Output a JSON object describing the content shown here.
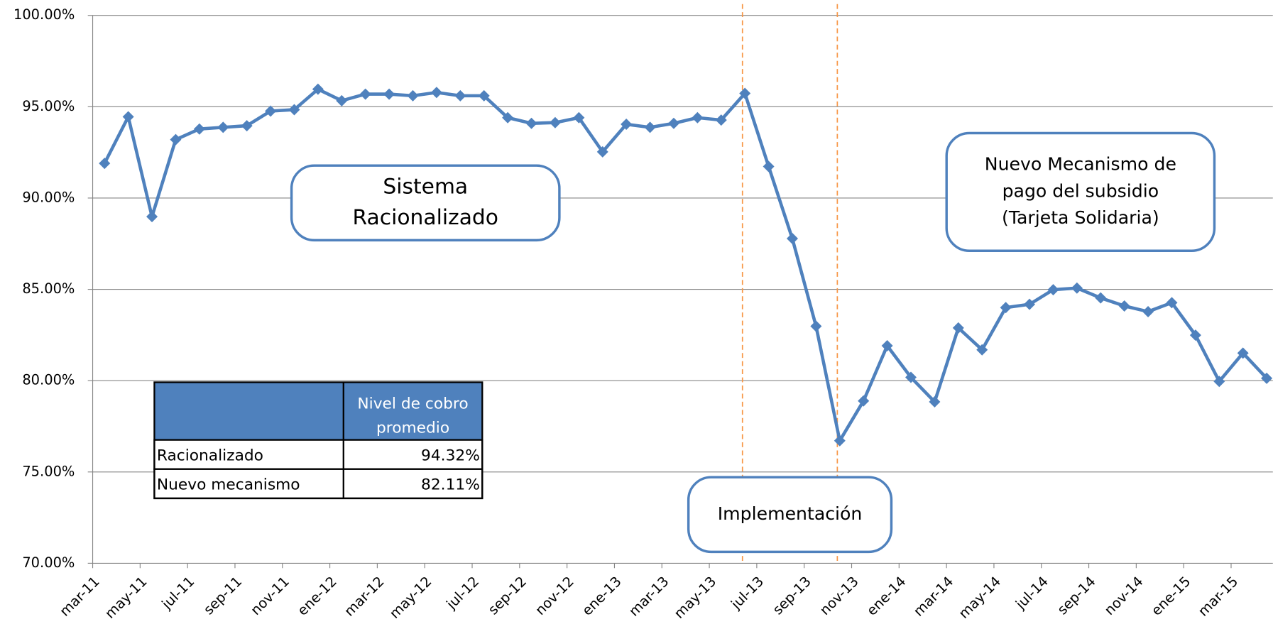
{
  "chart_data": {
    "type": "line",
    "categories": [
      "mar-11",
      null,
      "may-11",
      null,
      "jul-11",
      null,
      "sep-11",
      null,
      "nov-11",
      null,
      "ene-12",
      null,
      "mar-12",
      null,
      "may-12",
      null,
      "jul-12",
      null,
      "sep-12",
      null,
      "nov-12",
      null,
      "ene-13",
      null,
      "mar-13",
      null,
      "may-13",
      null,
      "jul-13",
      null,
      "sep-13",
      null,
      "nov-13",
      null,
      "ene-14",
      null,
      "mar-14",
      null,
      "may-14",
      null,
      "jul-14",
      null,
      "sep-14",
      null,
      "nov-14",
      null,
      "ene-15",
      null,
      "mar-15",
      null
    ],
    "series": [
      {
        "name": "Nivel de cobro",
        "color": "#4f81bd",
        "values": [
          91.9,
          94.45,
          88.98,
          93.2,
          93.78,
          93.87,
          93.96,
          94.76,
          94.84,
          95.96,
          95.33,
          95.69,
          95.69,
          95.6,
          95.78,
          95.6,
          95.6,
          94.4,
          94.09,
          94.13,
          94.4,
          92.53,
          94.04,
          93.87,
          94.09,
          94.4,
          94.27,
          95.73,
          91.73,
          87.78,
          82.98,
          76.71,
          78.89,
          81.91,
          80.18,
          78.84,
          82.89,
          81.69,
          84.0,
          84.18,
          84.98,
          85.07,
          84.53,
          84.09,
          83.78,
          84.27,
          82.49,
          79.96,
          81.51,
          80.13
        ]
      }
    ],
    "ylim": [
      70,
      100
    ],
    "yticks": [
      {
        "value": 70,
        "label": "70.00%"
      },
      {
        "value": 75,
        "label": "75.00%"
      },
      {
        "value": 80,
        "label": "80.00%"
      },
      {
        "value": 85,
        "label": "85.00%"
      },
      {
        "value": 90,
        "label": "90.00%"
      },
      {
        "value": 95,
        "label": "95.00%"
      },
      {
        "value": 100,
        "label": "100.00%"
      }
    ],
    "grid": true,
    "annotations": [
      [
        "Sistema",
        "Racionalizado"
      ],
      [
        "Nuevo Mecanismo de",
        "pago del subsidio",
        "(Tarjeta Solidaria)"
      ],
      [
        "Implementación"
      ]
    ]
  },
  "table": {
    "header": [
      "Nivel de cobro",
      "promedio"
    ],
    "rows": [
      [
        "Racionalizado",
        "94.32%"
      ],
      [
        "Nuevo mecanismo",
        "82.11%"
      ]
    ]
  }
}
